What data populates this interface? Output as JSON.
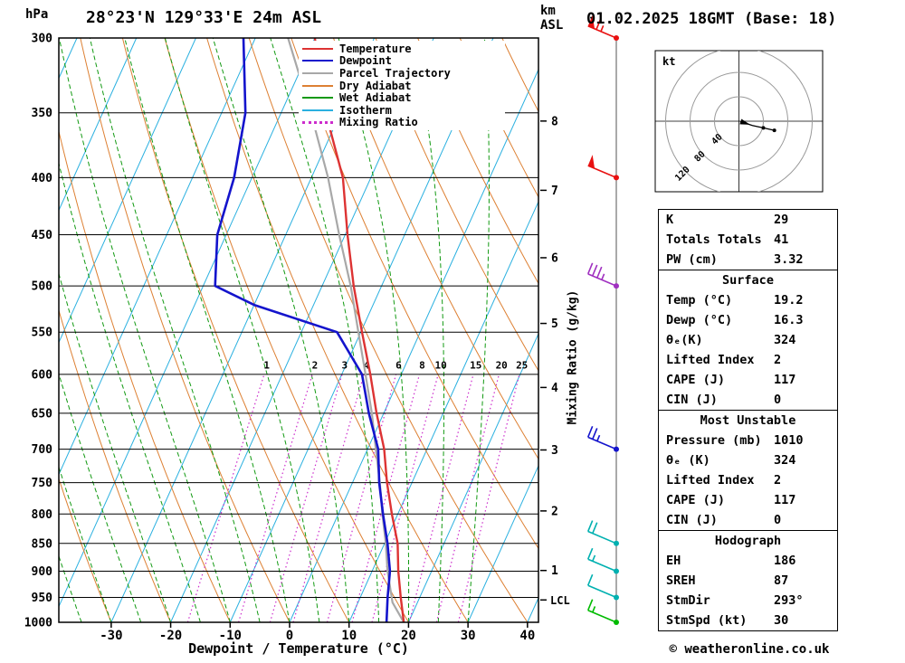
{
  "header": {
    "pressure_unit": "hPa",
    "title": "28°23'N 129°33'E 24m ASL",
    "km_label": "km",
    "asl_label": "ASL",
    "datetime": "01.02.2025 18GMT (Base: 18)"
  },
  "legend": {
    "items": [
      {
        "name": "temperature",
        "label": "Temperature",
        "color": "#dd3333",
        "dash": "solid"
      },
      {
        "name": "dewpoint",
        "label": "Dewpoint",
        "color": "#1414cc",
        "dash": "solid"
      },
      {
        "name": "parcel-trajectory",
        "label": "Parcel Trajectory",
        "color": "#a8a8a8",
        "dash": "solid"
      },
      {
        "name": "dry-adiabat",
        "label": "Dry Adiabat",
        "color": "#dd8033",
        "dash": "solid"
      },
      {
        "name": "wet-adiabat",
        "label": "Wet Adiabat",
        "color": "#119911",
        "dash": "solid"
      },
      {
        "name": "isotherm",
        "label": "Isotherm",
        "color": "#2ab0e0",
        "dash": "solid"
      },
      {
        "name": "mixing-ratio",
        "label": "Mixing Ratio",
        "color": "#cc2ccc",
        "dash": "dotted"
      }
    ]
  },
  "chart_data": {
    "type": "skew-t-log-p-sounding",
    "xlabel": "Dewpoint / Temperature (°C)",
    "ylabel_left": "hPa",
    "ylabel_right": "km ASL",
    "mixing_axis_label": "Mixing Ratio (g/kg)",
    "pressure_levels_hpa": [
      300,
      350,
      400,
      450,
      500,
      550,
      600,
      650,
      700,
      750,
      800,
      850,
      900,
      950,
      1000
    ],
    "temp_ticks_c": [
      -30,
      -20,
      -10,
      0,
      10,
      20,
      30,
      40
    ],
    "km_ticks": [
      1,
      2,
      3,
      4,
      5,
      6,
      7,
      8
    ],
    "lcl_label": "LCL",
    "lcl_pressure_hpa": 955,
    "mixing_ratio_lines_gkg": [
      1,
      2,
      3,
      4,
      6,
      8,
      10,
      15,
      20,
      25
    ],
    "temperature_profile_p_t": [
      [
        1000,
        19.2
      ],
      [
        950,
        16.8
      ],
      [
        900,
        14.4
      ],
      [
        850,
        12.2
      ],
      [
        800,
        9.0
      ],
      [
        750,
        5.8
      ],
      [
        700,
        2.8
      ],
      [
        650,
        -1.2
      ],
      [
        600,
        -5.2
      ],
      [
        550,
        -9.8
      ],
      [
        500,
        -14.7
      ],
      [
        450,
        -19.6
      ],
      [
        400,
        -24.7
      ],
      [
        350,
        -32.5
      ],
      [
        300,
        -40.0
      ]
    ],
    "dewpoint_profile_p_t": [
      [
        1000,
        16.3
      ],
      [
        950,
        14.6
      ],
      [
        900,
        13.0
      ],
      [
        850,
        10.5
      ],
      [
        800,
        7.5
      ],
      [
        750,
        4.5
      ],
      [
        700,
        1.8
      ],
      [
        650,
        -2.5
      ],
      [
        600,
        -6.6
      ],
      [
        550,
        -14.0
      ],
      [
        520,
        -30.0
      ],
      [
        500,
        -38.0
      ],
      [
        450,
        -41.5
      ],
      [
        400,
        -43.0
      ],
      [
        350,
        -46.0
      ],
      [
        300,
        -52.0
      ]
    ],
    "parcel_profile_p_t": [
      [
        1000,
        19.2
      ],
      [
        960,
        15.8
      ],
      [
        900,
        12.6
      ],
      [
        850,
        10.2
      ],
      [
        800,
        7.4
      ],
      [
        750,
        4.6
      ],
      [
        700,
        1.4
      ],
      [
        650,
        -2.0
      ],
      [
        600,
        -6.0
      ],
      [
        550,
        -10.4
      ],
      [
        500,
        -15.2
      ],
      [
        450,
        -21.0
      ],
      [
        400,
        -27.2
      ],
      [
        350,
        -35.0
      ],
      [
        300,
        -44.5
      ]
    ],
    "wind_barbs": [
      {
        "pressure_hpa": 300,
        "speed_kt": 65,
        "color": "#e81010"
      },
      {
        "pressure_hpa": 400,
        "speed_kt": 50,
        "color": "#e81010"
      },
      {
        "pressure_hpa": 500,
        "speed_kt": 35,
        "color": "#a030c0"
      },
      {
        "pressure_hpa": 700,
        "speed_kt": 25,
        "color": "#1414cc"
      },
      {
        "pressure_hpa": 850,
        "speed_kt": 20,
        "color": "#00b0b0"
      },
      {
        "pressure_hpa": 900,
        "speed_kt": 15,
        "color": "#00b0b0"
      },
      {
        "pressure_hpa": 950,
        "speed_kt": 10,
        "color": "#00b0b0"
      },
      {
        "pressure_hpa": 1000,
        "speed_kt": 15,
        "color": "#00bb00"
      }
    ],
    "colors": {
      "temperature": "#dd3333",
      "dewpoint": "#1414cc",
      "parcel": "#a8a8a8",
      "dry_adiabat": "#dd8033",
      "wet_adiabat": "#119911",
      "isotherm": "#2ab0e0",
      "mixing_ratio": "#cc2ccc",
      "grid": "#000000"
    }
  },
  "hodograph": {
    "unit_label": "kt",
    "ring_labels_kt": [
      40,
      80,
      120
    ],
    "trace_kt": [
      [
        2,
        -1
      ],
      [
        10,
        -3
      ],
      [
        22,
        -7
      ],
      [
        40,
        -11
      ],
      [
        58,
        -15
      ]
    ]
  },
  "stats": {
    "indices": [
      {
        "label": "K",
        "value": "29"
      },
      {
        "label": "Totals Totals",
        "value": "41"
      },
      {
        "label": "PW (cm)",
        "value": "3.32"
      }
    ],
    "sections": [
      {
        "title": "Surface",
        "rows": [
          {
            "label": "Temp (°C)",
            "value": "19.2"
          },
          {
            "label": "Dewp (°C)",
            "value": "16.3"
          },
          {
            "label": "θₑ(K)",
            "value": "324"
          },
          {
            "label": "Lifted Index",
            "value": "2"
          },
          {
            "label": "CAPE (J)",
            "value": "117"
          },
          {
            "label": "CIN (J)",
            "value": "0"
          }
        ]
      },
      {
        "title": "Most Unstable",
        "rows": [
          {
            "label": "Pressure (mb)",
            "value": "1010"
          },
          {
            "label": "θₑ (K)",
            "value": "324"
          },
          {
            "label": "Lifted Index",
            "value": "2"
          },
          {
            "label": "CAPE (J)",
            "value": "117"
          },
          {
            "label": "CIN (J)",
            "value": "0"
          }
        ]
      },
      {
        "title": "Hodograph",
        "rows": [
          {
            "label": "EH",
            "value": "186"
          },
          {
            "label": "SREH",
            "value": "87"
          },
          {
            "label": "StmDir",
            "value": "293°"
          },
          {
            "label": "StmSpd (kt)",
            "value": "30"
          }
        ]
      }
    ]
  },
  "footer": {
    "copyright": "© weatheronline.co.uk"
  }
}
